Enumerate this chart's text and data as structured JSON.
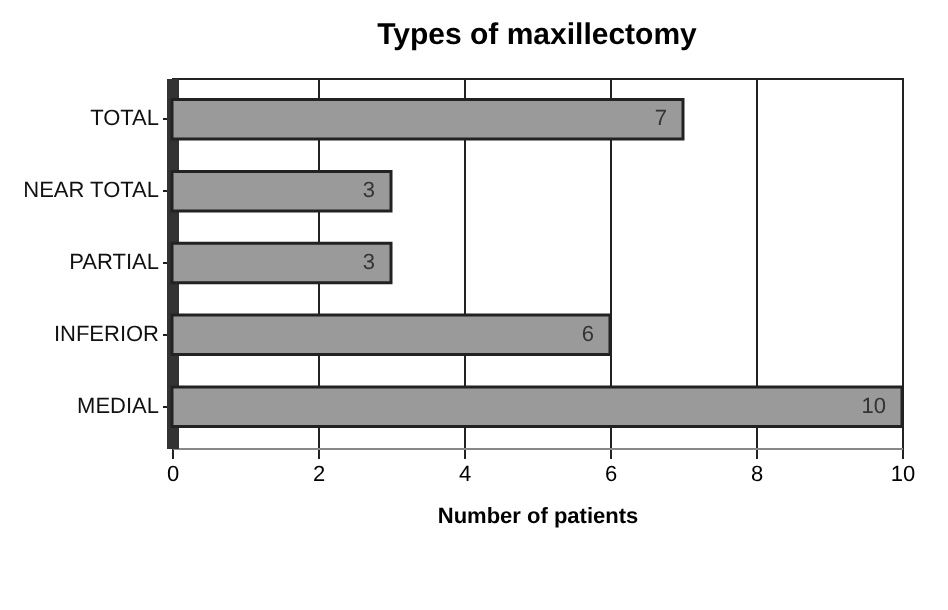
{
  "chart_data": {
    "type": "bar",
    "orientation": "horizontal",
    "title": "Types of maxillectomy",
    "xlabel": "Number of patients",
    "categories": [
      "TOTAL",
      "NEAR TOTAL",
      "PARTIAL",
      "INFERIOR",
      "MEDIAL"
    ],
    "values": [
      7,
      3,
      3,
      6,
      10
    ],
    "color": "#9a9a9a",
    "xlim": [
      0,
      10
    ],
    "xticks": [
      0,
      2,
      4,
      6,
      8,
      10
    ],
    "grid": "x",
    "data_labels": true
  }
}
